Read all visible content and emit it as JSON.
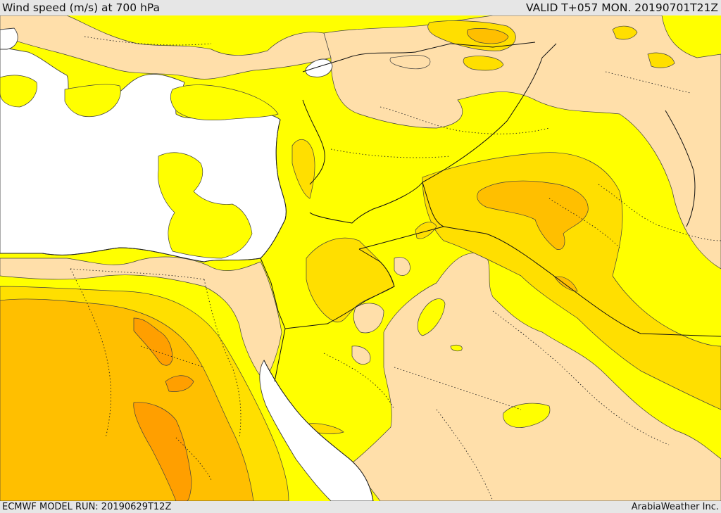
{
  "header": {
    "title": "Wind speed (m/s) at 700 hPa",
    "valid": "VALID T+057 MON. 20190701T21Z"
  },
  "footer": {
    "model_run": "ECMWF MODEL RUN: 20190629T12Z",
    "credit": "ArabiaWeather Inc."
  },
  "map": {
    "variable": "wind speed",
    "level_hpa": 700,
    "units": "m/s",
    "colors": {
      "water": "#ffffff",
      "band_1": "#ffdfaa",
      "band_2": "#ffff00",
      "band_3": "#ffdf00",
      "band_4": "#ffbf00",
      "band_5": "#ff9f00",
      "contour": "#404040"
    }
  }
}
